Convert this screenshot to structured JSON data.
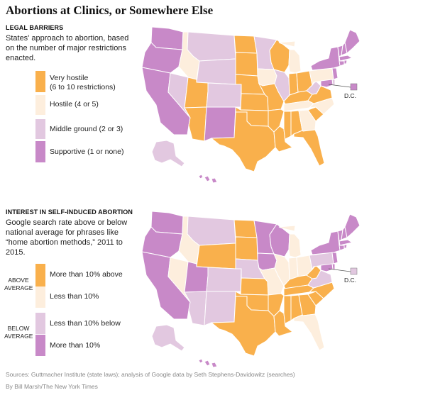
{
  "title": "Abortions at Clinics, or Somewhere Else",
  "colors": {
    "orange": "#f9b04c",
    "light_orange": "#fdeedd",
    "light_purple": "#e2c8e0",
    "purple": "#c889c8"
  },
  "map1": {
    "heading": "LEGAL BARRIERS",
    "description": "States' approach to abortion, based on the number of major restrictions enacted.",
    "legend": [
      {
        "label": "Very hostile",
        "sublabel": "(6 to 10 restrictions)",
        "color": "#f9b04c"
      },
      {
        "label": "Hostile (4 or 5)",
        "color": "#fdeedd"
      },
      {
        "label": "Middle ground (2 or 3)",
        "color": "#e2c8e0"
      },
      {
        "label": "Supportive (1 or none)",
        "color": "#c889c8"
      }
    ],
    "dc_label": "D.C.",
    "states": {
      "WA": "#c889c8",
      "OR": "#c889c8",
      "CA": "#c889c8",
      "NV": "#e2c8e0",
      "ID": "#fdeedd",
      "MT": "#e2c8e0",
      "WY": "#e2c8e0",
      "UT": "#f9b04c",
      "AZ": "#f9b04c",
      "CO": "#e2c8e0",
      "NM": "#c889c8",
      "ND": "#f9b04c",
      "SD": "#f9b04c",
      "NE": "#f9b04c",
      "KS": "#f9b04c",
      "OK": "#f9b04c",
      "TX": "#f9b04c",
      "MN": "#e2c8e0",
      "IA": "#fdeedd",
      "MO": "#f9b04c",
      "AR": "#f9b04c",
      "LA": "#f9b04c",
      "WI": "#f9b04c",
      "IL": "#e2c8e0",
      "MI": "#fdeedd",
      "IN": "#f9b04c",
      "OH": "#f9b04c",
      "KY": "#f9b04c",
      "TN": "#fdeedd",
      "MS": "#f9b04c",
      "AL": "#f9b04c",
      "GA": "#fdeedd",
      "FL": "#f9b04c",
      "SC": "#f9b04c",
      "NC": "#fdeedd",
      "VA": "#f9b04c",
      "WV": "#e2c8e0",
      "PA": "#fdeedd",
      "NY": "#c889c8",
      "VT": "#c889c8",
      "NH": "#c889c8",
      "ME": "#c889c8",
      "MA": "#c889c8",
      "CT": "#c889c8",
      "RI": "#c889c8",
      "NJ": "#c889c8",
      "DE": "#e2c8e0",
      "MD": "#c889c8",
      "AK": "#e2c8e0",
      "HI": "#c889c8",
      "DC": "#c889c8"
    }
  },
  "map2": {
    "heading": "INTEREST IN SELF-INDUCED ABORTION",
    "description": "Google search rate above or below national average for phrases like “home abortion methods,” 2011 to 2015.",
    "group_above": "ABOVE AVERAGE",
    "group_below": "BELOW AVERAGE",
    "legend": [
      {
        "label": "More than 10% above",
        "color": "#f9b04c"
      },
      {
        "label": "Less than 10%",
        "color": "#fdeedd"
      },
      {
        "label": "Less than 10% below",
        "color": "#e2c8e0"
      },
      {
        "label": "More than 10%",
        "color": "#c889c8"
      }
    ],
    "dc_label": "D.C.",
    "states": {
      "WA": "#c889c8",
      "OR": "#c889c8",
      "CA": "#c889c8",
      "NV": "#fdeedd",
      "ID": "#fdeedd",
      "MT": "#e2c8e0",
      "WY": "#f9b04c",
      "UT": "#c889c8",
      "AZ": "#e2c8e0",
      "CO": "#e2c8e0",
      "NM": "#e2c8e0",
      "ND": "#f9b04c",
      "SD": "#f9b04c",
      "NE": "#e2c8e0",
      "KS": "#f9b04c",
      "OK": "#f9b04c",
      "TX": "#f9b04c",
      "MN": "#c889c8",
      "IA": "#c889c8",
      "MO": "#fdeedd",
      "AR": "#f9b04c",
      "LA": "#f9b04c",
      "WI": "#c889c8",
      "IL": "#fdeedd",
      "MI": "#fdeedd",
      "IN": "#fdeedd",
      "OH": "#fdeedd",
      "KY": "#f9b04c",
      "TN": "#f9b04c",
      "MS": "#f9b04c",
      "AL": "#f9b04c",
      "GA": "#f9b04c",
      "FL": "#fdeedd",
      "SC": "#f9b04c",
      "NC": "#f9b04c",
      "VA": "#e2c8e0",
      "WV": "#f9b04c",
      "PA": "#e2c8e0",
      "NY": "#c889c8",
      "VT": "#c889c8",
      "NH": "#c889c8",
      "ME": "#c889c8",
      "MA": "#c889c8",
      "CT": "#c889c8",
      "RI": "#c889c8",
      "NJ": "#c889c8",
      "DE": "#c889c8",
      "MD": "#c889c8",
      "AK": "#e2c8e0",
      "HI": "#c889c8",
      "DC": "#e2c8e0"
    }
  },
  "footer": {
    "sources": "Sources: Guttmacher Institute (state laws); analysis of Google data by Seth Stephens-Davidowitz (searches)",
    "credit": "By Bill Marsh/The New York Times"
  }
}
